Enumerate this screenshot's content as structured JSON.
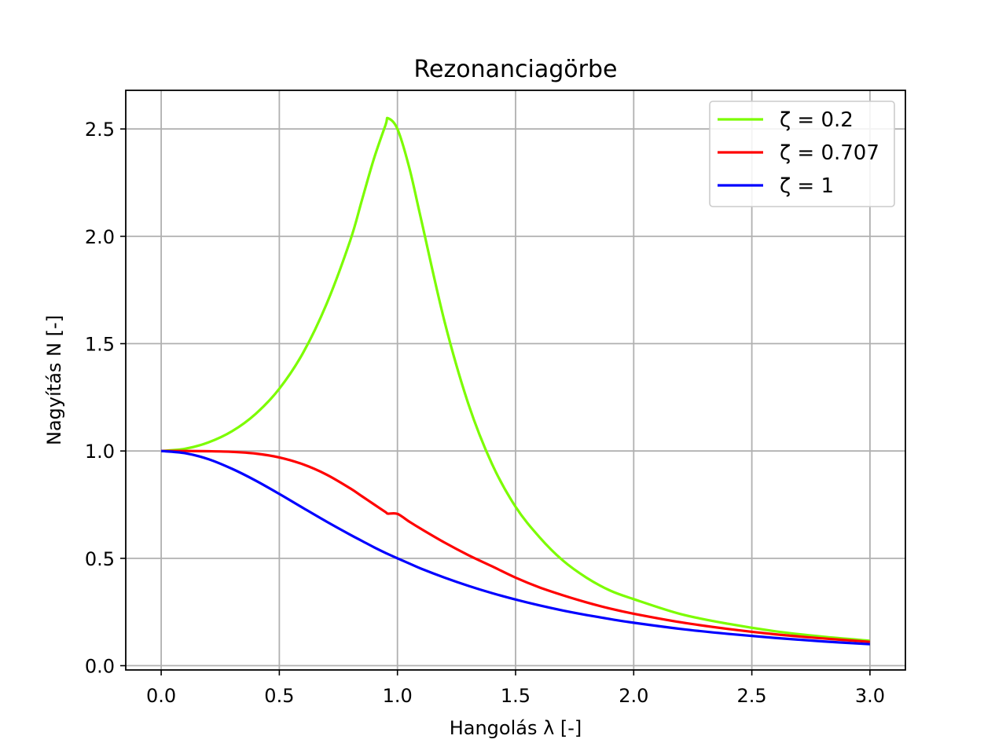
{
  "chart_data": {
    "type": "line",
    "title": "Rezonanciagörbe",
    "xlabel": "Hangolás λ [-]",
    "ylabel": "Nagyítás N [-]",
    "xlim": [
      -0.15,
      3.15
    ],
    "ylim": [
      -0.02,
      2.68
    ],
    "xticks": [
      0.0,
      0.5,
      1.0,
      1.5,
      2.0,
      2.5,
      3.0
    ],
    "xtick_labels": [
      "0.0",
      "0.5",
      "1.0",
      "1.5",
      "2.0",
      "2.5",
      "3.0"
    ],
    "yticks": [
      0.0,
      0.5,
      1.0,
      1.5,
      2.0,
      2.5
    ],
    "ytick_labels": [
      "0.0",
      "0.5",
      "1.0",
      "1.5",
      "2.0",
      "2.5"
    ],
    "grid": true,
    "legend_position": "top-right",
    "x": [
      0.0,
      0.1,
      0.2,
      0.3,
      0.4,
      0.5,
      0.6,
      0.7,
      0.8,
      0.85,
      0.9,
      0.95,
      0.96,
      1.0,
      1.05,
      1.1,
      1.2,
      1.3,
      1.4,
      1.5,
      1.6,
      1.7,
      1.8,
      1.9,
      2.0,
      2.2,
      2.4,
      2.6,
      2.8,
      3.0
    ],
    "series": [
      {
        "name": "ζ = 0.2",
        "color": "#7cfc00",
        "values": [
          1.0,
          1.01,
          1.04,
          1.092,
          1.173,
          1.29,
          1.456,
          1.685,
          1.98,
          2.17,
          2.36,
          2.52,
          2.55,
          2.5,
          2.32,
          2.08,
          1.6,
          1.22,
          0.94,
          0.74,
          0.6,
          0.49,
          0.41,
          0.35,
          0.31,
          0.24,
          0.195,
          0.16,
          0.135,
          0.116
        ]
      },
      {
        "name": "ζ = 0.707",
        "color": "#ff0000",
        "values": [
          1.0,
          1.0,
          0.999,
          0.996,
          0.988,
          0.97,
          0.938,
          0.89,
          0.826,
          0.789,
          0.752,
          0.715,
          0.708,
          0.707,
          0.671,
          0.637,
          0.573,
          0.515,
          0.463,
          0.41,
          0.365,
          0.328,
          0.295,
          0.266,
          0.242,
          0.202,
          0.171,
          0.146,
          0.127,
          0.111
        ]
      },
      {
        "name": "ζ = 1",
        "color": "#0000ff",
        "values": [
          1.0,
          0.99,
          0.962,
          0.917,
          0.862,
          0.8,
          0.735,
          0.671,
          0.61,
          0.581,
          0.552,
          0.525,
          0.52,
          0.5,
          0.476,
          0.452,
          0.41,
          0.372,
          0.338,
          0.308,
          0.281,
          0.257,
          0.236,
          0.217,
          0.2,
          0.171,
          0.148,
          0.129,
          0.113,
          0.1
        ]
      }
    ]
  }
}
